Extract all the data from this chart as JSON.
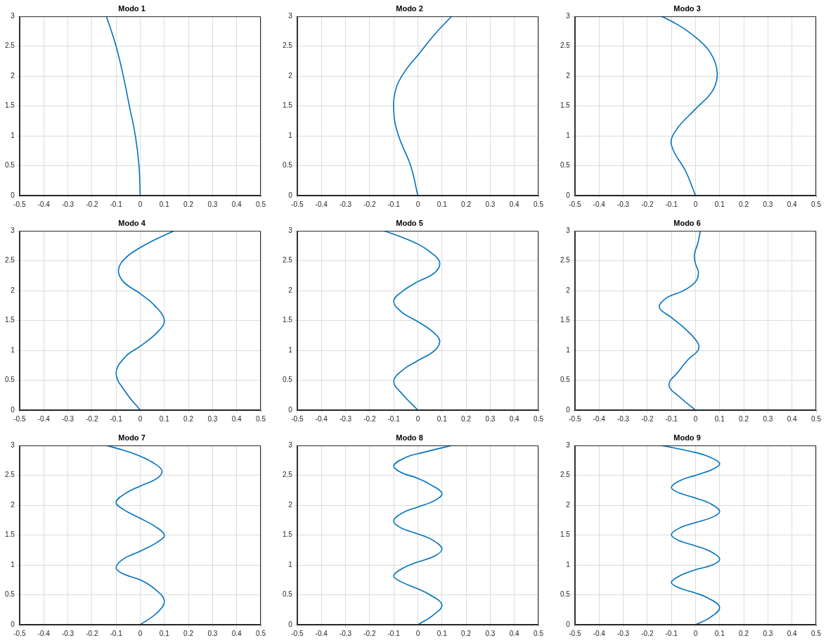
{
  "chart_data": [
    {
      "type": "line",
      "title": "Modo 1",
      "color": "#0072bd",
      "x": [
        0,
        -0.005,
        -0.02,
        -0.045,
        -0.07,
        -0.1,
        -0.14
      ],
      "values": [
        0,
        0.5,
        1,
        1.5,
        2,
        2.5,
        3
      ],
      "xlim": [
        -0.5,
        0.5
      ],
      "ylim": [
        0,
        3
      ],
      "xticks": [
        -0.5,
        -0.4,
        -0.3,
        -0.2,
        -0.1,
        0,
        0.1,
        0.2,
        0.3,
        0.4,
        0.5
      ],
      "yticks": [
        0,
        0.5,
        1,
        1.5,
        2,
        2.5,
        3
      ],
      "grid": true
    },
    {
      "type": "line",
      "title": "Modo 2",
      "color": "#0072bd",
      "x": [
        0,
        -0.03,
        -0.08,
        -0.1,
        -0.09,
        -0.05,
        0,
        0.07,
        0.14
      ],
      "values": [
        0,
        0.5,
        1,
        1.4,
        1.8,
        2.1,
        2.35,
        2.7,
        3
      ],
      "xlim": [
        -0.5,
        0.5
      ],
      "ylim": [
        0,
        3
      ],
      "xticks": [
        -0.5,
        -0.4,
        -0.3,
        -0.2,
        -0.1,
        0,
        0.1,
        0.2,
        0.3,
        0.4,
        0.5
      ],
      "yticks": [
        0,
        0.5,
        1,
        1.5,
        2,
        2.5,
        3
      ],
      "grid": true
    },
    {
      "type": "line",
      "title": "Modo 3",
      "color": "#0072bd",
      "x": [
        0,
        -0.04,
        -0.1,
        -0.08,
        0,
        0.07,
        0.09,
        0.06,
        0,
        -0.07,
        -0.14
      ],
      "values": [
        0,
        0.4,
        0.85,
        1.1,
        1.45,
        1.75,
        2.05,
        2.4,
        2.65,
        2.85,
        3
      ],
      "xlim": [
        -0.5,
        0.5
      ],
      "ylim": [
        0,
        3
      ],
      "xticks": [
        -0.5,
        -0.4,
        -0.3,
        -0.2,
        -0.1,
        0,
        0.1,
        0.2,
        0.3,
        0.4,
        0.5
      ],
      "yticks": [
        0,
        0.5,
        1,
        1.5,
        2,
        2.5,
        3
      ],
      "grid": true
    },
    {
      "type": "line",
      "title": "Modo 4",
      "color": "#0072bd",
      "x": [
        0,
        -0.06,
        -0.1,
        -0.06,
        0,
        0.07,
        0.1,
        0.06,
        0,
        -0.07,
        -0.09,
        -0.06,
        0,
        0.07,
        0.14
      ],
      "values": [
        0,
        0.3,
        0.62,
        0.9,
        1.07,
        1.3,
        1.5,
        1.75,
        1.95,
        2.15,
        2.35,
        2.55,
        2.72,
        2.87,
        3
      ],
      "xlim": [
        -0.5,
        0.5
      ],
      "ylim": [
        0,
        3
      ],
      "xticks": [
        -0.5,
        -0.4,
        -0.3,
        -0.2,
        -0.1,
        0,
        0.1,
        0.2,
        0.3,
        0.4,
        0.5
      ],
      "yticks": [
        0,
        0.5,
        1,
        1.5,
        2,
        2.5,
        3
      ],
      "grid": true
    },
    {
      "type": "line",
      "title": "Modo 5",
      "color": "#0072bd",
      "x": [
        0,
        -0.06,
        -0.1,
        -0.06,
        0,
        0.07,
        0.09,
        0.05,
        0,
        -0.07,
        -0.1,
        -0.06,
        0,
        0.07,
        0.09,
        0.05,
        0,
        -0.07,
        -0.14
      ],
      "values": [
        0,
        0.25,
        0.48,
        0.68,
        0.83,
        1,
        1.17,
        1.35,
        1.48,
        1.65,
        1.83,
        2,
        2.15,
        2.3,
        2.48,
        2.65,
        2.78,
        2.9,
        3
      ],
      "xlim": [
        -0.5,
        0.5
      ],
      "ylim": [
        0,
        3
      ],
      "xticks": [
        -0.5,
        -0.4,
        -0.3,
        -0.2,
        -0.1,
        0,
        0.1,
        0.2,
        0.3,
        0.4,
        0.5
      ],
      "yticks": [
        0,
        0.5,
        1,
        1.5,
        2,
        2.5,
        3
      ],
      "grid": true
    },
    {
      "type": "line",
      "title": "Modo 6",
      "color": "#0072bd",
      "x": [
        0,
        -0.06,
        -0.11,
        -0.07,
        -0.03,
        0.01,
        0.01,
        -0.04,
        -0.1,
        -0.15,
        -0.12,
        -0.05,
        0,
        0.012,
        0,
        -0.005,
        0.01,
        0.02
      ],
      "values": [
        0,
        0.2,
        0.42,
        0.65,
        0.85,
        1,
        1.12,
        1.35,
        1.55,
        1.72,
        1.88,
        2,
        2.15,
        2.3,
        2.45,
        2.6,
        2.8,
        3
      ],
      "xlim": [
        -0.5,
        0.5
      ],
      "ylim": [
        0,
        3
      ],
      "xticks": [
        -0.5,
        -0.4,
        -0.3,
        -0.2,
        -0.1,
        0,
        0.1,
        0.2,
        0.3,
        0.4,
        0.5
      ],
      "yticks": [
        0,
        0.5,
        1,
        1.5,
        2,
        2.5,
        3
      ],
      "grid": true
    },
    {
      "type": "line",
      "title": "Modo 7",
      "color": "#0072bd",
      "x": [
        0,
        0.07,
        0.1,
        0.06,
        0,
        -0.07,
        -0.1,
        -0.07,
        0,
        0.07,
        0.1,
        0.06,
        0,
        -0.07,
        -0.1,
        -0.06,
        0,
        0.07,
        0.09,
        0.05,
        0,
        -0.07,
        -0.14
      ],
      "values": [
        0,
        0.2,
        0.4,
        0.6,
        0.75,
        0.85,
        0.95,
        1.1,
        1.23,
        1.38,
        1.5,
        1.65,
        1.78,
        1.93,
        2.05,
        2.2,
        2.32,
        2.45,
        2.58,
        2.72,
        2.82,
        2.92,
        3
      ],
      "xlim": [
        -0.5,
        0.5
      ],
      "ylim": [
        0,
        3
      ],
      "xticks": [
        -0.5,
        -0.4,
        -0.3,
        -0.2,
        -0.1,
        0,
        0.1,
        0.2,
        0.3,
        0.4,
        0.5
      ],
      "yticks": [
        0,
        0.5,
        1,
        1.5,
        2,
        2.5,
        3
      ],
      "grid": true
    },
    {
      "type": "line",
      "title": "Modo 8",
      "color": "#0072bd",
      "x": [
        0,
        0.06,
        0.1,
        0.05,
        0,
        -0.07,
        -0.1,
        -0.06,
        0,
        0.07,
        0.1,
        0.06,
        0,
        -0.07,
        -0.1,
        -0.06,
        0,
        0.07,
        0.1,
        0.05,
        0,
        -0.07,
        -0.1,
        -0.05,
        0.02,
        0.14
      ],
      "values": [
        0,
        0.15,
        0.33,
        0.5,
        0.6,
        0.72,
        0.82,
        0.95,
        1.05,
        1.15,
        1.27,
        1.42,
        1.52,
        1.62,
        1.74,
        1.88,
        1.97,
        2.08,
        2.2,
        2.35,
        2.45,
        2.55,
        2.66,
        2.8,
        2.88,
        3
      ],
      "xlim": [
        -0.5,
        0.5
      ],
      "ylim": [
        0,
        3
      ],
      "xticks": [
        -0.5,
        -0.4,
        -0.3,
        -0.2,
        -0.1,
        0,
        0.1,
        0.2,
        0.3,
        0.4,
        0.5
      ],
      "yticks": [
        0,
        0.5,
        1,
        1.5,
        2,
        2.5,
        3
      ],
      "grid": true
    },
    {
      "type": "line",
      "title": "Modo 9",
      "color": "#0072bd",
      "x": [
        0,
        0.06,
        0.1,
        0.05,
        0,
        -0.07,
        -0.1,
        -0.06,
        0,
        0.07,
        0.1,
        0.06,
        0,
        -0.07,
        -0.1,
        -0.06,
        0,
        0.07,
        0.1,
        0.06,
        0,
        -0.07,
        -0.1,
        -0.06,
        0,
        0.07,
        0.1,
        0.05,
        -0.02,
        -0.14
      ],
      "values": [
        0,
        0.12,
        0.29,
        0.45,
        0.53,
        0.62,
        0.71,
        0.83,
        0.92,
        1,
        1.1,
        1.23,
        1.32,
        1.41,
        1.51,
        1.63,
        1.71,
        1.8,
        1.9,
        2.03,
        2.12,
        2.21,
        2.3,
        2.42,
        2.5,
        2.6,
        2.7,
        2.82,
        2.9,
        3
      ],
      "xlim": [
        -0.5,
        0.5
      ],
      "ylim": [
        0,
        3
      ],
      "xticks": [
        -0.5,
        -0.4,
        -0.3,
        -0.2,
        -0.1,
        0,
        0.1,
        0.2,
        0.3,
        0.4,
        0.5
      ],
      "yticks": [
        0,
        0.5,
        1,
        1.5,
        2,
        2.5,
        3
      ],
      "grid": true
    }
  ]
}
